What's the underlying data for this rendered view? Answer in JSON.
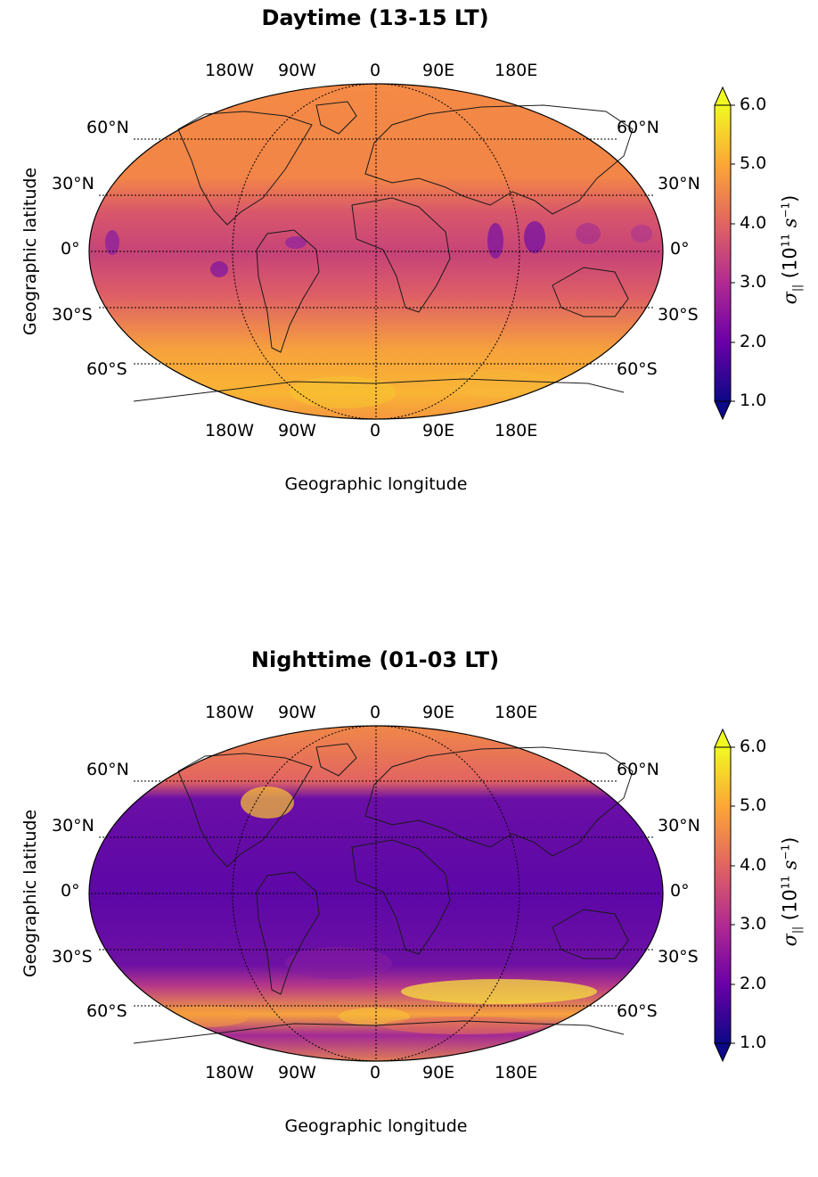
{
  "panels": [
    {
      "id": "day",
      "title": "Daytime (13-15 LT)",
      "xlabel": "Geographic longitude",
      "ylabel": "Geographic latitude",
      "lon_ticks": [
        "180W",
        "90W",
        "0",
        "90E",
        "180E"
      ],
      "lat_ticks_left": [
        "60°N",
        "30°N",
        "0°",
        "30°S",
        "60°S"
      ],
      "lat_ticks_right": [
        "60°N",
        "30°N",
        "0°",
        "30°S",
        "60°S"
      ],
      "colorbar": {
        "ticks": [
          "6.0",
          "5.0",
          "4.0",
          "3.0",
          "2.0",
          "1.0"
        ],
        "range": [
          1.0,
          6.0
        ]
      }
    },
    {
      "id": "night",
      "title": "Nighttime (01-03 LT)",
      "xlabel": "Geographic longitude",
      "ylabel": "Geographic latitude",
      "lon_ticks": [
        "180W",
        "90W",
        "0",
        "90E",
        "180E"
      ],
      "lat_ticks_left": [
        "60°N",
        "30°N",
        "0°",
        "30°S",
        "60°S"
      ],
      "lat_ticks_right": [
        "60°N",
        "30°N",
        "0°",
        "30°S",
        "60°S"
      ],
      "colorbar": {
        "ticks": [
          "6.0",
          "5.0",
          "4.0",
          "3.0",
          "2.0",
          "1.0"
        ],
        "range": [
          1.0,
          6.0
        ]
      }
    }
  ],
  "colorbar_label": {
    "symbol": "σ",
    "subscript": "||",
    "unit_prefix": "(10",
    "exp": "11",
    "unit": " s",
    "unit_exp": "−1",
    "close": ")"
  },
  "colormap": [
    "#0d0887",
    "#6a00a8",
    "#b12a90",
    "#e16462",
    "#fca636",
    "#f0f921"
  ]
}
